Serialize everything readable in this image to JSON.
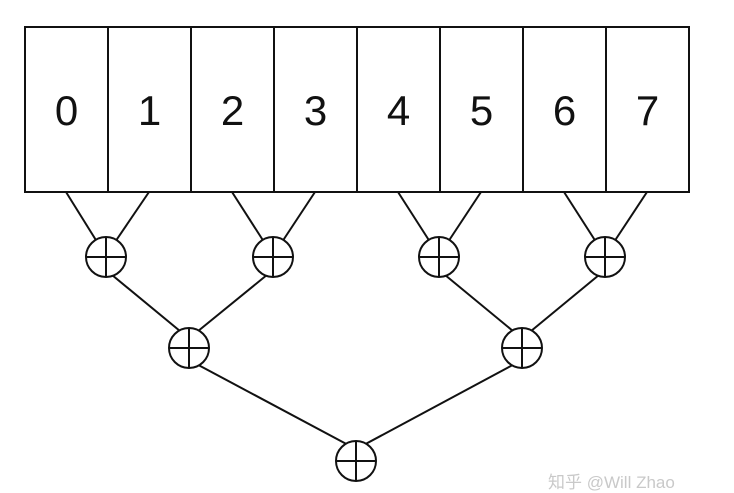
{
  "array": {
    "cells": [
      "0",
      "1",
      "2",
      "3",
      "4",
      "5",
      "6",
      "7"
    ]
  },
  "reduction": {
    "operator_icon": "xor-circle-plus-icon",
    "levels": 3
  },
  "watermark": {
    "text": "知乎 @Will Zhao"
  }
}
